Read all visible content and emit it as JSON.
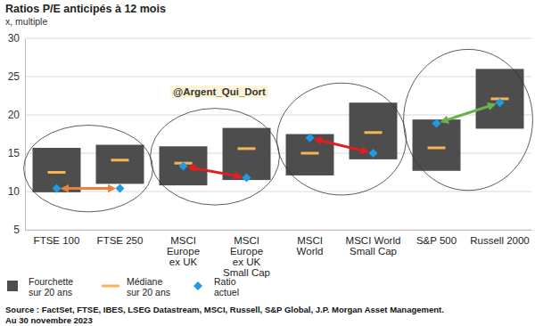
{
  "chart_data": {
    "type": "range",
    "title": "Ratios P/E anticipés à 12 mois",
    "subtitle": "x, multiple",
    "categories": [
      "FTSE 100",
      "FTSE 250",
      "MSCI\nEurope\nex UK",
      "MSCI\nEurope\nex UK\nSmall Cap",
      "MSCI\nWorld",
      "MSCI World\nSmall Cap",
      "S&P 500",
      "Russell 2000"
    ],
    "series": [
      {
        "name": "Fourchette sur 20 ans",
        "type": "range",
        "color": "#4d4d4d",
        "low": [
          9.9,
          11.0,
          10.8,
          11.5,
          12.1,
          14.2,
          12.7,
          18.2
        ],
        "high": [
          15.7,
          16.1,
          15.9,
          18.3,
          17.5,
          21.6,
          19.4,
          26.0
        ]
      },
      {
        "name": "Médiane sur 20 ans",
        "type": "scatter",
        "marker": "dash",
        "color": "#f5b557",
        "values": [
          12.5,
          14.1,
          13.7,
          15.6,
          15.0,
          17.7,
          15.7,
          22.1
        ]
      },
      {
        "name": "Ratio actuel",
        "type": "scatter",
        "marker": "diamond",
        "color": "#1f9be6",
        "values": [
          10.4,
          10.4,
          13.3,
          11.8,
          17.0,
          15.0,
          18.9,
          21.6
        ]
      }
    ],
    "ylim": [
      5,
      30
    ],
    "yticks": [
      5,
      10,
      15,
      20,
      25,
      30
    ],
    "grid": true,
    "legend": "bottom-left",
    "annotations": [
      "@Argent_Qui_Dort"
    ],
    "source": [
      "Source : FactSet, FTSE, IBES, LSEG Datastream, MSCI, Russell, S&P Global, J.P. Morgan Asset Management.",
      "Au 30 novembre 2023"
    ]
  }
}
